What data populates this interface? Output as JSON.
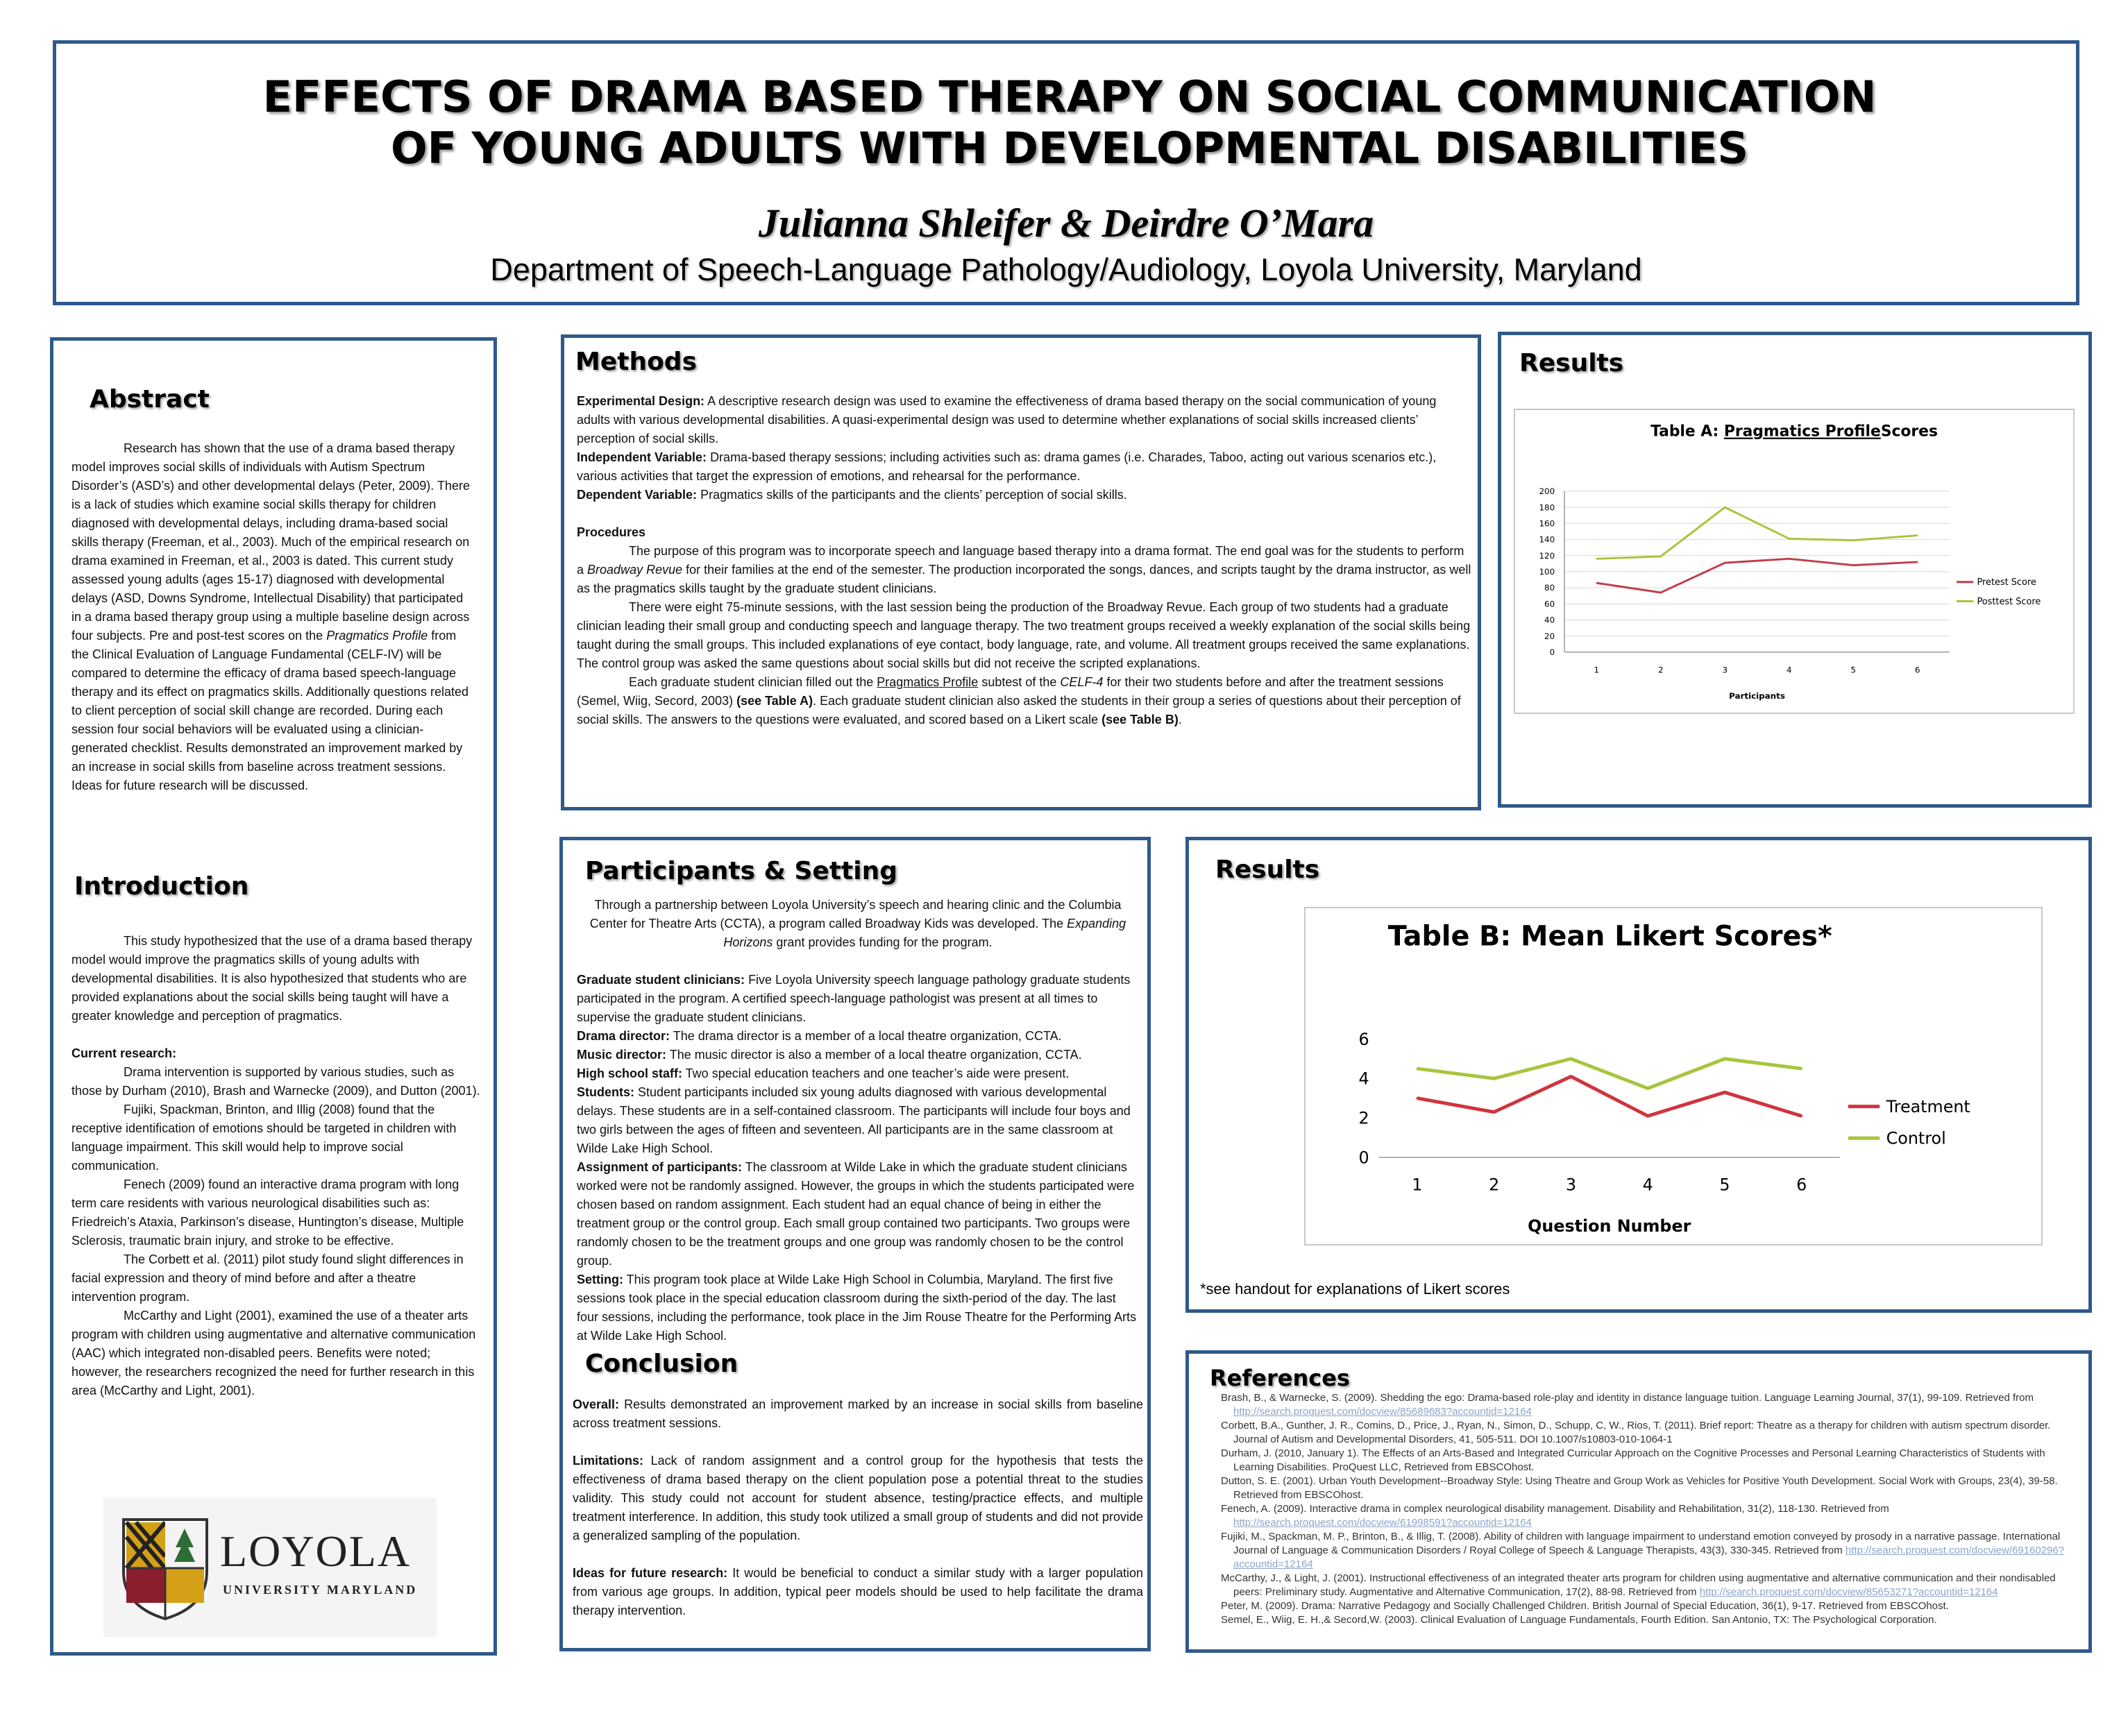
{
  "header": {
    "title_line1": "EFFECTS OF DRAMA BASED THERAPY ON SOCIAL COMMUNICATION",
    "title_line2": "OF YOUNG ADULTS WITH DEVELOPMENTAL DISABILITIES",
    "authors": "Julianna Shleifer & Deirdre O’Mara",
    "department": "Department of Speech-Language Pathology/Audiology, Loyola University, Maryland"
  },
  "abstract": {
    "heading": "Abstract",
    "text": "Research has shown that the use of a drama based therapy model improves social skills of individuals with Autism Spectrum Disorder’s (ASD’s) and other developmental delays (Peter, 2009).  There is a lack of studies which examine social skills therapy for children diagnosed with developmental delays, including drama-based social skills therapy (Freeman, et al., 2003).  Much of the empirical research on drama examined in Freeman, et al., 2003 is dated. This current study assessed young adults (ages 15-17) diagnosed with developmental delays (ASD, Downs Syndrome, Intellectual Disability) that participated in a drama based therapy group using a multiple baseline design across four subjects.  Pre and post-test scores on the",
    "text_italic": "Pragmatics Profile",
    "text_end": "from the Clinical Evaluation of Language Fundamental (CELF-IV) will be compared to determine the efficacy of drama based speech-language therapy and its effect on pragmatics skills. Additionally questions related to client perception of social skill change are recorded.  During each session four social behaviors will be evaluated using a clinician-generated checklist.  Results demonstrated an improvement marked by an increase in social skills from baseline across treatment sessions. Ideas for future research will be discussed."
  },
  "introduction": {
    "heading": "Introduction",
    "p1": "This study hypothesized that the use of a drama based therapy model would improve the pragmatics skills of young adults with developmental disabilities.  It is also hypothesized that students who are provided explanations about the social skills being taught will have a greater knowledge and perception of pragmatics.",
    "current_label": "Current research:",
    "p2": "Drama intervention is supported by various studies, such as those by Durham (2010), Brash and Warnecke (2009), and Dutton (2001).",
    "p3": "Fujiki, Spackman, Brinton, and Illig (2008) found that the receptive identification of emotions should be targeted in children with language impairment. This skill would help to improve social communication.",
    "p4": "Fenech (2009) found an interactive drama program with long term care residents with various neurological disabilities such as: Friedreich’s Ataxia, Parkinson’s disease, Huntington’s disease, Multiple Sclerosis, traumatic brain injury, and stroke to be effective.",
    "p5": "The Corbett et al. (2011) pilot study found slight differences in facial expression and theory of mind before and after a theatre intervention program.",
    "p6": "McCarthy and Light (2001), examined the use of a theater arts program with children using augmentative and alternative communication (AAC) which integrated non-disabled peers. Benefits were noted; however, the researchers recognized the need for further research in this area (McCarthy and Light, 2001)."
  },
  "logo": {
    "name": "LOYOLA",
    "sub": "UNIVERSITY MARYLAND"
  },
  "methods": {
    "heading": "Methods",
    "design_label": "Experimental Design:",
    "design": "A descriptive research design was used to examine the effectiveness of drama based therapy on the social communication of young adults with various developmental disabilities. A quasi-experimental design was used to determine whether explanations of social skills increased clients’ perception of social skills.",
    "iv_label": "Independent Variable:",
    "iv": "Drama-based therapy sessions; including activities such as: drama games (i.e. Charades, Taboo, acting out various scenarios etc.), various activities that target the expression of emotions, and rehearsal for the performance.",
    "dv_label": "Dependent Variable:",
    "dv": "Pragmatics skills of the participants and the clients’ perception of social skills.",
    "procedures_label": "Procedures",
    "proc1a": "The purpose of this program was to incorporate speech and language based therapy into a drama format. The end goal was for the students to perform a",
    "proc1_italic": "Broadway Revue",
    "proc1b": "for their families at the end of the semester. The production incorporated the songs, dances, and scripts taught by the drama instructor, as well as the pragmatics skills taught by the graduate student clinicians.",
    "proc2": "There were eight 75-minute sessions, with the last session being the production of the Broadway Revue.  Each group of two students had a graduate clinician leading their small group and conducting speech and language therapy. The two treatment groups received a weekly explanation of the social skills being taught during the small groups.  This included explanations of eye contact, body language, rate, and volume. All treatment groups received the same explanations. The control group was asked the same questions about social skills but did not receive the scripted explanations.",
    "proc3a": "Each graduate student clinician filled out the",
    "proc3_u": "Pragmatics Profile",
    "proc3b": "subtest of the",
    "proc3_i": "CELF-4",
    "proc3c": "for their two students before and after the treatment sessions (Semel, Wiig, Secord, 2003)",
    "proc3_b1": "(see Table A)",
    "proc3d": ". Each graduate student clinician also asked the students in their group a series of questions about their perception of social skills. The answers to the questions were evaluated, and scored based on a Likert scale",
    "proc3_b2": "(see Table B)",
    "proc3e": "."
  },
  "results_top": {
    "heading": "Results"
  },
  "participants": {
    "heading": "Participants & Setting",
    "intro_a": "Through a partnership between Loyola University’s speech and hearing clinic and the Columbia Center for Theatre Arts (CCTA), a program called Broadway Kids was developed. The",
    "intro_i": "Expanding  Horizons",
    "intro_b": "grant provides funding for the program.",
    "items": [
      {
        "label": "Graduate student clinicians:",
        "text": "Five Loyola University speech language pathology graduate students participated in the program. A certified speech-language pathologist was present at all times to supervise the graduate student clinicians."
      },
      {
        "label": "Drama director:",
        "text": "The drama director is a member of a local theatre organization, CCTA."
      },
      {
        "label": "Music director:",
        "text": "The music director is also a member of a local theatre organization, CCTA."
      },
      {
        "label": "High school staff:",
        "text": "Two special education teachers and one teacher’s aide were present."
      },
      {
        "label": "Students:",
        "text": "Student participants included six young adults diagnosed with various developmental delays. These students are in a self-contained classroom.  The participants will include four boys and two girls between the ages of fifteen and seventeen. All participants are in the same classroom at Wilde Lake High School."
      },
      {
        "label": "Assignment of participants:",
        "text": "The classroom at Wilde Lake in which the graduate student clinicians worked were not be randomly assigned. However, the groups in which the students participated were chosen based on random assignment.  Each student had an equal chance of being in either the treatment group or the control group. Each small group contained two participants. Two groups were randomly chosen to be the treatment groups and one group was randomly chosen to be the control group."
      },
      {
        "label": "Setting:",
        "text": "This program took place at Wilde Lake High School in Columbia, Maryland. The first five sessions took place in the special education classroom during the sixth-period of the day. The last four sessions, including the performance, took place in the Jim Rouse Theatre for the Performing Arts at Wilde Lake High School."
      }
    ]
  },
  "conclusion": {
    "heading": "Conclusion",
    "overall_label": "Overall:",
    "overall": "Results demonstrated an improvement marked by an increase in social skills from baseline across treatment sessions.",
    "limitations_label": "Limitations:",
    "limitations": "Lack of random assignment and a control group for the hypothesis that tests the effectiveness of drama based therapy on the client population pose a potential threat to the studies validity. This study could not account for student absence, testing/practice effects, and multiple treatment interference. In addition, this study took utilized a small group of students and did not provide a generalized sampling of the population.",
    "future_label": "Ideas for future research:",
    "future": "It would be beneficial to conduct a similar study with a larger population from various age groups.  In addition, typical peer models should be used to help facilitate the drama therapy intervention."
  },
  "results_bottom": {
    "heading": "Results",
    "note": "*see handout for explanations  of Likert scores"
  },
  "references": {
    "heading": "References",
    "items": [
      "Brash, B., & Warnecke, S. (2009). Shedding the ego: Drama-based role-play and identity in distance language tuition. Language Learning Journal, 37(1), 99-109. Retrieved from http://search.proquest.com/docview/85689683?accountid=12164",
      "Corbett, B.A., Gunther, J. R., Comins, D., Price, J., Ryan, N., Simon, D., Schupp, C, W., Rios, T. (2011). Brief report: Theatre as a therapy for children with autism spectrum disorder. Journal of Autism and Developmental Disorders, 41, 505-511. DOI 10.1007/s10803-010-1064-1",
      "Durham, J. (2010, January 1). The Effects of an Arts-Based and Integrated Curricular Approach on the Cognitive Processes and Personal Learning Characteristics of Students with Learning Disabilities. ProQuest LLC, Retrieved from EBSCOhost.",
      "Dutton, S. E. (2001). Urban Youth Development--Broadway Style: Using Theatre and Group Work as Vehicles for Positive Youth Development. Social Work with Groups, 23(4), 39-58. Retrieved from EBSCOhost.",
      "Fenech, A. (2009). Interactive drama in complex neurological disability management. Disability and Rehabilitation, 31(2), 118-130. Retrieved from http://search.proquest.com/docview/61998591?accountid=12164",
      "Fujiki, M., Spackman, M. P., Brinton, B., & Illig, T. (2008). Ability of children with language impairment to understand emotion conveyed by prosody in a narrative passage. International Journal of Language & Communication Disorders / Royal College of Speech & Language Therapists, 43(3), 330-345. Retrieved from http://search.proquest.com/docview/69160296?accountid=12164",
      "McCarthy, J., & Light, J. (2001). Instructional effectiveness of an integrated theater arts program for children using augmentative and alternative communication and their nondisabled peers: Preliminary study. Augmentative and Alternative Communication, 17(2), 88-98. Retrieved from http://search.proquest.com/docview/85653271?accountid=12164",
      "Peter, M. (2009). Drama: Narrative Pedagogy and Socially Challenged Children. British Journal of Special Education, 36(1), 9-17. Retrieved from EBSCOhost.",
      "Semel, E., Wiig, E. H.,& Secord,W. (2003). Clinical Evaluation of Language Fundamentals, Fourth Edition. San Antonio, TX: The Psychological Corporation."
    ]
  },
  "chart_data": [
    {
      "type": "line",
      "title_prefix": "Table A: ",
      "title_underlined": "Pragmatics Profile",
      "title_suffix": "Scores",
      "xlabel": "Participants",
      "ylabel": "",
      "categories": [
        "1",
        "2",
        "3",
        "4",
        "5",
        "6"
      ],
      "ylim": [
        0,
        200
      ],
      "yticks": [
        "0",
        "20",
        "40",
        "60",
        "80",
        "100",
        "120",
        "140",
        "160",
        "180",
        "200"
      ],
      "grid": true,
      "legend": "right",
      "series": [
        {
          "name": "Pretest Score",
          "color": "#c0404a",
          "values": [
            86,
            74,
            111,
            116,
            108,
            112
          ]
        },
        {
          "name": "Posttest Score",
          "color": "#a8c53c",
          "values": [
            116,
            119,
            180,
            141,
            139,
            145
          ]
        }
      ]
    },
    {
      "type": "line",
      "title": "Table B: Mean Likert Scores*",
      "xlabel": "Question Number",
      "ylabel": "",
      "categories": [
        "1",
        "2",
        "3",
        "4",
        "5",
        "6"
      ],
      "ylim": [
        0,
        6
      ],
      "yticks": [
        "0",
        "2",
        "4",
        "6"
      ],
      "grid": false,
      "legend": "right",
      "series": [
        {
          "name": "Treatment",
          "color": "#d0343e",
          "values": [
            3.0,
            2.3,
            4.1,
            2.1,
            3.3,
            2.1
          ]
        },
        {
          "name": "Control",
          "color": "#a8c53c",
          "values": [
            4.5,
            4.0,
            5.0,
            3.5,
            5.0,
            4.5
          ]
        }
      ]
    }
  ]
}
